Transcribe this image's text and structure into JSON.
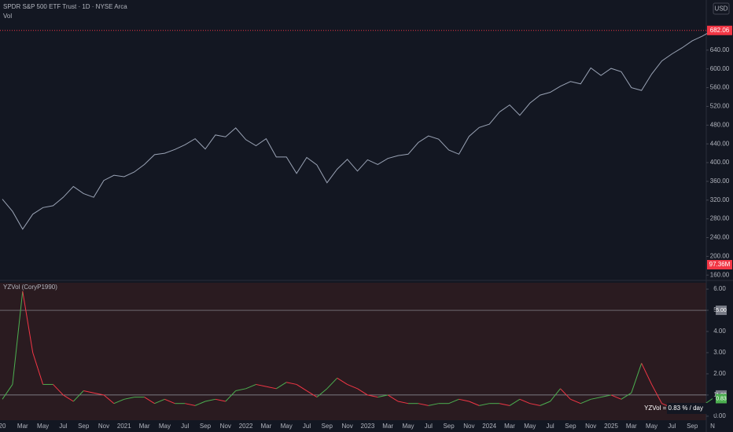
{
  "header": {
    "title": "SPDR S&P 500 ETF Trust · 1D · NYSE Arca",
    "volume_label": "Vol",
    "currency": "USD"
  },
  "chart_data": [
    {
      "type": "line",
      "color": "#9aa3b5",
      "values": [
        322,
        296,
        258,
        290,
        304,
        308,
        326,
        349,
        334,
        326,
        362,
        373,
        370,
        380,
        396,
        417,
        420,
        428,
        438,
        451,
        429,
        459,
        455,
        474,
        449,
        436,
        451,
        412,
        412,
        377,
        411,
        395,
        357,
        386,
        407,
        382,
        406,
        396,
        409,
        415,
        418,
        443,
        457,
        450,
        427,
        418,
        456,
        475,
        482,
        508,
        523,
        501,
        527,
        544,
        550,
        563,
        573,
        568,
        602,
        586,
        601,
        594,
        560,
        554,
        589,
        617,
        632,
        645,
        660,
        670,
        682.06
      ],
      "ylim": [
        152,
        747
      ],
      "yticks": [
        {
          "value": 160,
          "label": "160.00"
        },
        {
          "value": 200,
          "label": "200.00"
        },
        {
          "value": 240,
          "label": "240.00"
        },
        {
          "value": 280,
          "label": "280.00"
        },
        {
          "value": 320,
          "label": "320.00"
        },
        {
          "value": 360,
          "label": "360.00"
        },
        {
          "value": 400,
          "label": "400.00"
        },
        {
          "value": 440,
          "label": "440.00"
        },
        {
          "value": 480,
          "label": "480.00"
        },
        {
          "value": 520,
          "label": "520.00"
        },
        {
          "value": 560,
          "label": "560.00"
        },
        {
          "value": 600,
          "label": "600.00"
        },
        {
          "value": 640,
          "label": "640.00"
        },
        {
          "value": 680,
          "label": "680.00"
        }
      ],
      "volume_badge": "97.36M"
    },
    {
      "type": "line",
      "title": "YZVol (CoryP1990)",
      "color_up": "#4caf50",
      "color_down": "#f23645",
      "categories": [
        "20",
        null,
        "Mar",
        null,
        "May",
        null,
        "Jul",
        null,
        "Sep",
        null,
        "Nov",
        null,
        "2021",
        null,
        "Mar",
        null,
        "May",
        null,
        "Jul",
        null,
        "Sep",
        null,
        "Nov",
        null,
        "2022",
        null,
        "Mar",
        null,
        "May",
        null,
        "Jul",
        null,
        "Sep",
        null,
        "Nov",
        null,
        "2023",
        null,
        "Mar",
        null,
        "May",
        null,
        "Jul",
        null,
        "Sep",
        null,
        "Nov",
        null,
        "2024",
        null,
        "Mar",
        null,
        "May",
        null,
        "Jul",
        null,
        "Sep",
        null,
        "Nov",
        null,
        "2025",
        null,
        "Mar",
        null,
        "May",
        null,
        "Jul",
        null,
        "Sep",
        null,
        "N"
      ],
      "values": [
        0.8,
        1.5,
        5.9,
        3.0,
        1.5,
        1.5,
        1.0,
        0.7,
        1.2,
        1.1,
        1.0,
        0.6,
        0.8,
        0.9,
        0.9,
        0.6,
        0.8,
        0.6,
        0.6,
        0.5,
        0.7,
        0.8,
        0.7,
        1.2,
        1.3,
        1.5,
        1.4,
        1.3,
        1.6,
        1.5,
        1.2,
        0.9,
        1.3,
        1.8,
        1.5,
        1.3,
        1.0,
        0.9,
        1.0,
        0.7,
        0.6,
        0.6,
        0.5,
        0.6,
        0.6,
        0.8,
        0.7,
        0.5,
        0.6,
        0.6,
        0.5,
        0.8,
        0.6,
        0.5,
        0.7,
        1.3,
        0.8,
        0.6,
        0.8,
        0.9,
        1.0,
        0.8,
        1.1,
        2.5,
        1.5,
        0.6,
        0.4,
        0.4,
        0.3,
        0.5,
        0.83
      ],
      "ylim": [
        -0.19,
        6.3
      ],
      "yticks": [
        {
          "value": 0,
          "label": "0.00"
        },
        {
          "value": 1,
          "label": "1.00"
        },
        {
          "value": 2,
          "label": "2.00"
        },
        {
          "value": 3,
          "label": "3.00"
        },
        {
          "value": 4,
          "label": "4.00"
        },
        {
          "value": 5,
          "label": "5.00"
        },
        {
          "value": 6,
          "label": "6.00"
        }
      ],
      "levels": [
        {
          "value": 5,
          "label": "5.00"
        },
        {
          "value": 1,
          "label": "1.00"
        }
      ],
      "annotation": "YZVol = 0.83 % / day"
    }
  ]
}
